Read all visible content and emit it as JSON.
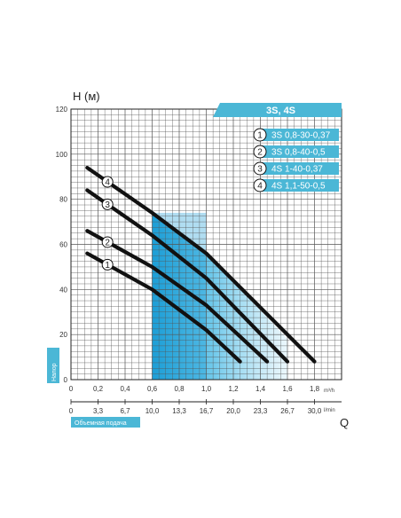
{
  "chart_data": {
    "type": "line",
    "title": "",
    "ylabel": "H (м)",
    "ylabel_side": "Напор",
    "xlabel": "Q",
    "xlabel_bottom": "Объемная подача",
    "unit_m3h": "m³/h",
    "unit_lmin": "l/min",
    "ylim": [
      0,
      120
    ],
    "xlim": [
      0,
      2.0
    ],
    "y_ticks": [
      "0",
      "20",
      "40",
      "60",
      "80",
      "100",
      "120"
    ],
    "x_ticks_m3h": [
      "0",
      "0,2",
      "0,4",
      "0,6",
      "0,8",
      "1,0",
      "1,2",
      "1,4",
      "1,6",
      "1,8"
    ],
    "x_ticks_lmin": [
      "0",
      "3,3",
      "6,7",
      "10,0",
      "13,3",
      "16,7",
      "20,0",
      "23,3",
      "26,7",
      "30,0"
    ],
    "badge": "3S, 4S",
    "series": [
      {
        "name": "3S 0,8-30-0,37",
        "marker": "1",
        "x": [
          0.12,
          0.6,
          1.0,
          1.25
        ],
        "y": [
          56,
          40,
          22,
          8
        ]
      },
      {
        "name": "3S 0,8-40-0,5",
        "marker": "2",
        "x": [
          0.12,
          0.6,
          1.0,
          1.45
        ],
        "y": [
          66,
          50,
          33,
          8
        ]
      },
      {
        "name": "4S 1-40-0,37",
        "marker": "3",
        "x": [
          0.12,
          0.6,
          1.0,
          1.6
        ],
        "y": [
          84,
          64,
          45,
          8
        ]
      },
      {
        "name": "4S 1,1-50-0,5",
        "marker": "4",
        "x": [
          0.12,
          0.6,
          1.0,
          1.8
        ],
        "y": [
          94,
          74,
          56,
          8
        ]
      }
    ],
    "shaded_region": {
      "x": [
        0.6,
        1.6
      ]
    },
    "grid": true
  }
}
